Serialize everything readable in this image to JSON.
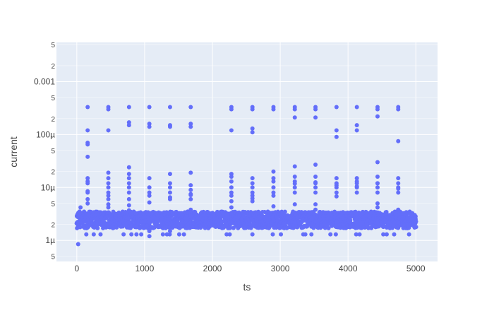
{
  "chart_data": {
    "type": "scatter",
    "xlabel": "ts",
    "ylabel": "current",
    "x_ticks": [
      0,
      1000,
      2000,
      3000,
      4000,
      5000
    ],
    "x_tick_labels": [
      "0",
      "1000",
      "2000",
      "3000",
      "4000",
      "5000"
    ],
    "xlim": [
      -300,
      5320
    ],
    "y_scale": "log",
    "ylim": [
      4e-07,
      0.0055
    ],
    "y_major_ticks": [
      1e-06,
      1e-05,
      0.0001,
      0.001
    ],
    "y_major_labels": [
      "1µ",
      "10µ",
      "100µ",
      "0.001"
    ],
    "y_minor_ticks": [
      5e-07,
      2e-06,
      5e-06,
      2e-05,
      5e-05,
      0.0002,
      0.0005,
      0.002,
      0.005
    ],
    "y_minor_labels": [
      "5",
      "2",
      "5",
      "2",
      "5",
      "2",
      "5",
      "2",
      "5"
    ],
    "grid": true,
    "marker_color": "#636efa",
    "plot_bg": "#e5ecf6",
    "grid_color": "#ffffff",
    "baseline": {
      "x_start": 0,
      "x_end": 5000,
      "y_min": 1.7e-06,
      "y_max": 3.5e-06
    },
    "spike_ts": [
      160,
      465,
      770,
      1070,
      1375,
      1680,
      2280,
      2590,
      2900,
      3215,
      3520,
      3830,
      4130,
      4435,
      4740
    ],
    "spike_points": [
      [
        160,
        0.00033
      ],
      [
        160,
        0.00012
      ],
      [
        160,
        7e-05
      ],
      [
        160,
        6.5e-05
      ],
      [
        160,
        3.8e-05
      ],
      [
        160,
        1.3e-05
      ],
      [
        160,
        8.5e-06
      ],
      [
        160,
        3.2e-06
      ],
      [
        160,
        1.5e-05
      ],
      [
        160,
        1.2e-05
      ],
      [
        160,
        8e-06
      ],
      [
        160,
        6e-06
      ],
      [
        160,
        5e-06
      ],
      [
        465,
        0.00033
      ],
      [
        465,
        0.0003
      ],
      [
        465,
        0.00012
      ],
      [
        465,
        1.9e-05
      ],
      [
        465,
        4.8e-06
      ],
      [
        465,
        4.2e-06
      ],
      [
        465,
        2.1e-06
      ],
      [
        465,
        1.5e-05
      ],
      [
        465,
        1.2e-05
      ],
      [
        465,
        1e-05
      ],
      [
        465,
        8e-06
      ],
      [
        465,
        7e-06
      ],
      [
        465,
        6e-06
      ],
      [
        770,
        0.00033
      ],
      [
        770,
        0.00017
      ],
      [
        770,
        0.00015
      ],
      [
        770,
        2.4e-05
      ],
      [
        770,
        1.8e-05
      ],
      [
        770,
        4.6e-06
      ],
      [
        770,
        3.7e-06
      ],
      [
        770,
        2.2e-06
      ],
      [
        770,
        1.5e-05
      ],
      [
        770,
        1.2e-05
      ],
      [
        770,
        1e-05
      ],
      [
        770,
        8e-06
      ],
      [
        770,
        6e-06
      ],
      [
        1070,
        0.00033
      ],
      [
        1070,
        0.00016
      ],
      [
        1070,
        0.00014
      ],
      [
        1070,
        1.5e-05
      ],
      [
        1070,
        5.2e-06
      ],
      [
        1070,
        2.5e-06
      ],
      [
        1070,
        2.2e-06
      ],
      [
        1070,
        1.5e-06
      ],
      [
        1070,
        1.2e-06
      ],
      [
        1070,
        1e-05
      ],
      [
        1070,
        8e-06
      ],
      [
        1070,
        7e-06
      ],
      [
        1375,
        0.00033
      ],
      [
        1375,
        0.00015
      ],
      [
        1375,
        0.00014
      ],
      [
        1375,
        1.8e-05
      ],
      [
        1375,
        6.5e-06
      ],
      [
        1375,
        2.6e-06
      ],
      [
        1375,
        2.5e-06
      ],
      [
        1375,
        1.5e-06
      ],
      [
        1375,
        1.2e-05
      ],
      [
        1375,
        1e-05
      ],
      [
        1375,
        8e-06
      ],
      [
        1375,
        6e-06
      ],
      [
        1680,
        0.00033
      ],
      [
        1680,
        0.00016
      ],
      [
        1680,
        0.00014
      ],
      [
        1680,
        1.9e-05
      ],
      [
        1680,
        7.2e-06
      ],
      [
        1680,
        3.8e-06
      ],
      [
        1680,
        2.9e-06
      ],
      [
        1680,
        1.1e-05
      ],
      [
        1680,
        9e-06
      ],
      [
        1680,
        7.5e-06
      ],
      [
        1680,
        6e-06
      ],
      [
        2280,
        0.00033
      ],
      [
        2280,
        0.0003
      ],
      [
        2280,
        0.00012
      ],
      [
        2280,
        1.8e-05
      ],
      [
        2280,
        5.5e-06
      ],
      [
        2280,
        4.2e-06
      ],
      [
        2280,
        3.3e-06
      ],
      [
        2280,
        2.2e-06
      ],
      [
        2280,
        1.6e-05
      ],
      [
        2280,
        1.3e-05
      ],
      [
        2280,
        1e-05
      ],
      [
        2280,
        8e-06
      ],
      [
        2280,
        7e-06
      ],
      [
        2590,
        0.00033
      ],
      [
        2590,
        0.0003
      ],
      [
        2590,
        0.00013
      ],
      [
        2590,
        0.00011
      ],
      [
        2590,
        6.2e-06
      ],
      [
        2590,
        5.5e-06
      ],
      [
        2590,
        2.4e-06
      ],
      [
        2590,
        1.5e-05
      ],
      [
        2590,
        1.2e-05
      ],
      [
        2590,
        1e-05
      ],
      [
        2590,
        8e-06
      ],
      [
        2590,
        7e-06
      ],
      [
        2900,
        0.00033
      ],
      [
        2900,
        0.0003
      ],
      [
        2900,
        2e-05
      ],
      [
        2900,
        4.4e-06
      ],
      [
        2900,
        2.4e-06
      ],
      [
        2900,
        1.5e-05
      ],
      [
        2900,
        1.3e-05
      ],
      [
        2900,
        1e-05
      ],
      [
        2900,
        8e-06
      ],
      [
        2900,
        7e-06
      ],
      [
        3215,
        0.00033
      ],
      [
        3215,
        0.0003
      ],
      [
        3215,
        0.00021
      ],
      [
        3215,
        2.5e-05
      ],
      [
        3215,
        1.18e-05
      ],
      [
        3215,
        4.8e-06
      ],
      [
        3215,
        3.3e-06
      ],
      [
        3215,
        2.2e-06
      ],
      [
        3215,
        1.6e-05
      ],
      [
        3215,
        1.3e-05
      ],
      [
        3215,
        1e-05
      ],
      [
        3215,
        8e-06
      ],
      [
        3520,
        0.00033
      ],
      [
        3520,
        0.0003
      ],
      [
        3520,
        0.00021
      ],
      [
        3520,
        2.7e-05
      ],
      [
        3520,
        1.25e-05
      ],
      [
        3520,
        4.8e-06
      ],
      [
        3520,
        3.8e-06
      ],
      [
        3520,
        2.3e-06
      ],
      [
        3520,
        1.6e-05
      ],
      [
        3520,
        1.2e-05
      ],
      [
        3520,
        1e-05
      ],
      [
        3520,
        8e-06
      ],
      [
        3830,
        0.00033
      ],
      [
        3830,
        0.00012
      ],
      [
        3830,
        9e-05
      ],
      [
        3830,
        1.1e-05
      ],
      [
        3830,
        6.8e-06
      ],
      [
        3830,
        2.3e-06
      ],
      [
        3830,
        1.8e-06
      ],
      [
        3830,
        1.5e-05
      ],
      [
        3830,
        1.2e-05
      ],
      [
        3830,
        1e-05
      ],
      [
        3830,
        8e-06
      ],
      [
        4130,
        0.00033
      ],
      [
        4130,
        0.00015
      ],
      [
        4130,
        0.00012
      ],
      [
        4130,
        1.3e-05
      ],
      [
        4130,
        1.05e-05
      ],
      [
        4130,
        3.2e-06
      ],
      [
        4130,
        1.9e-06
      ],
      [
        4130,
        1.5e-05
      ],
      [
        4130,
        1.2e-05
      ],
      [
        4130,
        1e-05
      ],
      [
        4130,
        8e-06
      ],
      [
        4435,
        0.00033
      ],
      [
        4435,
        0.0003
      ],
      [
        4435,
        0.00022
      ],
      [
        4435,
        3e-05
      ],
      [
        4435,
        1.2e-05
      ],
      [
        4435,
        5e-06
      ],
      [
        4435,
        4.2e-06
      ],
      [
        4435,
        2.1e-06
      ],
      [
        4435,
        1.6e-05
      ],
      [
        4435,
        1.2e-05
      ],
      [
        4435,
        1e-05
      ],
      [
        4435,
        8e-06
      ],
      [
        4740,
        0.00033
      ],
      [
        4740,
        0.0003
      ],
      [
        4740,
        7.5e-05
      ],
      [
        4740,
        9.5e-06
      ],
      [
        4740,
        3.8e-06
      ],
      [
        4740,
        2.2e-06
      ],
      [
        4740,
        1.5e-05
      ],
      [
        4740,
        1.2e-05
      ],
      [
        4740,
        1e-05
      ],
      [
        4740,
        8e-06
      ]
    ],
    "low_outliers": [
      [
        20,
        8.5e-07
      ],
      [
        55,
        4.2e-06
      ],
      [
        40,
        3.5e-06
      ],
      [
        140,
        1.3e-06
      ],
      [
        250,
        1.3e-06
      ],
      [
        350,
        1.3e-06
      ],
      [
        690,
        1.3e-06
      ],
      [
        805,
        1.3e-06
      ],
      [
        880,
        1.3e-06
      ],
      [
        950,
        1.3e-06
      ],
      [
        1270,
        1.3e-06
      ],
      [
        1330,
        1.3e-06
      ],
      [
        1370,
        1.3e-06
      ],
      [
        1510,
        1.3e-06
      ],
      [
        1580,
        1.3e-06
      ],
      [
        2210,
        1.3e-06
      ],
      [
        2255,
        1.3e-06
      ],
      [
        2590,
        1.3e-06
      ],
      [
        2890,
        1.3e-06
      ],
      [
        3010,
        1.3e-06
      ],
      [
        3340,
        1.3e-06
      ],
      [
        3370,
        1.3e-06
      ],
      [
        3460,
        1.3e-06
      ],
      [
        3740,
        1.3e-06
      ],
      [
        3820,
        1.3e-06
      ],
      [
        4120,
        1.3e-06
      ],
      [
        4170,
        1.3e-06
      ],
      [
        4520,
        1.3e-06
      ],
      [
        4570,
        1.3e-06
      ],
      [
        4680,
        1.3e-06
      ],
      [
        4900,
        1.3e-06
      ]
    ]
  }
}
